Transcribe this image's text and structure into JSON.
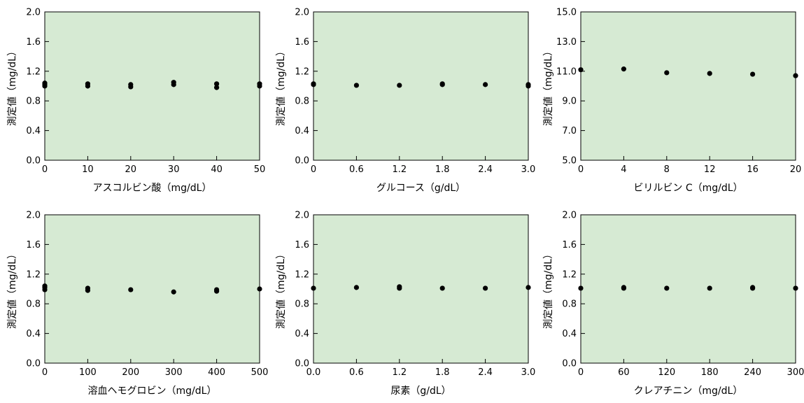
{
  "colors": {
    "plot_background": "#d6ead3",
    "marker": "#000000",
    "axis": "#000000"
  },
  "chart_data": [
    {
      "type": "scatter",
      "xlabel": "アスコルビン酸（mg/dL）",
      "ylabel": "測定値（mg/dL）",
      "xlim": [
        0,
        50
      ],
      "ylim": [
        0.0,
        2.0
      ],
      "xticks": [
        "0",
        "10",
        "20",
        "30",
        "40",
        "50"
      ],
      "yticks": [
        "0.0",
        "0.4",
        "0.8",
        "1.2",
        "1.6",
        "2.0"
      ],
      "grid": false,
      "points": [
        [
          0,
          1.0
        ],
        [
          0,
          1.02
        ],
        [
          0,
          1.04
        ],
        [
          10,
          1.0
        ],
        [
          10,
          1.03
        ],
        [
          20,
          0.99
        ],
        [
          20,
          1.02
        ],
        [
          30,
          1.02
        ],
        [
          30,
          1.05
        ],
        [
          40,
          0.98
        ],
        [
          40,
          1.03
        ],
        [
          50,
          1.0
        ],
        [
          50,
          1.03
        ]
      ]
    },
    {
      "type": "scatter",
      "xlabel": "グルコース（g/dL）",
      "ylabel": "測定値（mg/dL）",
      "xlim": [
        0,
        3.0
      ],
      "ylim": [
        0.0,
        2.0
      ],
      "xticks": [
        "0",
        "0.6",
        "1.2",
        "1.8",
        "2.4",
        "3.0"
      ],
      "yticks": [
        "0.0",
        "0.4",
        "0.8",
        "1.2",
        "1.6",
        "2.0"
      ],
      "grid": false,
      "points": [
        [
          0,
          1.02
        ],
        [
          0,
          1.03
        ],
        [
          0.6,
          1.01
        ],
        [
          1.2,
          1.01
        ],
        [
          1.8,
          1.02
        ],
        [
          1.8,
          1.03
        ],
        [
          2.4,
          1.02
        ],
        [
          3.0,
          1.0
        ],
        [
          3.0,
          1.02
        ]
      ]
    },
    {
      "type": "scatter",
      "xlabel": "ビリルビン C（mg/dL）",
      "ylabel": "測定値（mg/dL）",
      "xlim": [
        0,
        20
      ],
      "ylim": [
        5.0,
        15.0
      ],
      "xticks": [
        "0",
        "4",
        "8",
        "12",
        "16",
        "20"
      ],
      "yticks": [
        "5.0",
        "7.0",
        "9.0",
        "11.0",
        "13.0",
        "15.0"
      ],
      "grid": false,
      "points": [
        [
          0,
          11.1
        ],
        [
          4,
          11.15
        ],
        [
          8,
          10.9
        ],
        [
          12,
          10.85
        ],
        [
          16,
          10.8
        ],
        [
          20,
          10.7
        ]
      ]
    },
    {
      "type": "scatter",
      "xlabel": "溶血ヘモグロビン（mg/dL）",
      "ylabel": "測定値（mg/dL）",
      "xlim": [
        0,
        500
      ],
      "ylim": [
        0.0,
        2.0
      ],
      "xticks": [
        "0",
        "100",
        "200",
        "300",
        "400",
        "500"
      ],
      "yticks": [
        "0.0",
        "0.4",
        "0.8",
        "1.2",
        "1.6",
        "2.0"
      ],
      "grid": false,
      "points": [
        [
          0,
          0.99
        ],
        [
          0,
          1.02
        ],
        [
          0,
          1.04
        ],
        [
          100,
          0.98
        ],
        [
          100,
          1.01
        ],
        [
          200,
          0.99
        ],
        [
          300,
          0.96
        ],
        [
          400,
          0.97
        ],
        [
          400,
          0.99
        ],
        [
          500,
          1.0
        ]
      ]
    },
    {
      "type": "scatter",
      "xlabel": "尿素（g/dL）",
      "ylabel": "測定値（mg/dL）",
      "xlim": [
        0,
        3.0
      ],
      "ylim": [
        0.0,
        2.0
      ],
      "xticks": [
        "0.0",
        "0.6",
        "1.2",
        "1.8",
        "2.4",
        "3.0"
      ],
      "yticks": [
        "0.0",
        "0.4",
        "0.8",
        "1.2",
        "1.6",
        "2.0"
      ],
      "grid": false,
      "points": [
        [
          0,
          1.01
        ],
        [
          0.6,
          1.02
        ],
        [
          1.2,
          1.01
        ],
        [
          1.2,
          1.03
        ],
        [
          1.8,
          1.01
        ],
        [
          2.4,
          1.01
        ],
        [
          3.0,
          1.02
        ]
      ]
    },
    {
      "type": "scatter",
      "xlabel": "クレアチニン（mg/dL）",
      "ylabel": "測定値（mg/dL）",
      "xlim": [
        0,
        300
      ],
      "ylim": [
        0.0,
        2.0
      ],
      "xticks": [
        "0",
        "60",
        "120",
        "180",
        "240",
        "300"
      ],
      "yticks": [
        "0.0",
        "0.4",
        "0.8",
        "1.2",
        "1.6",
        "2.0"
      ],
      "grid": false,
      "points": [
        [
          0,
          1.01
        ],
        [
          60,
          1.01
        ],
        [
          60,
          1.02
        ],
        [
          120,
          1.01
        ],
        [
          180,
          1.01
        ],
        [
          240,
          1.01
        ],
        [
          240,
          1.02
        ],
        [
          300,
          1.01
        ]
      ]
    }
  ]
}
